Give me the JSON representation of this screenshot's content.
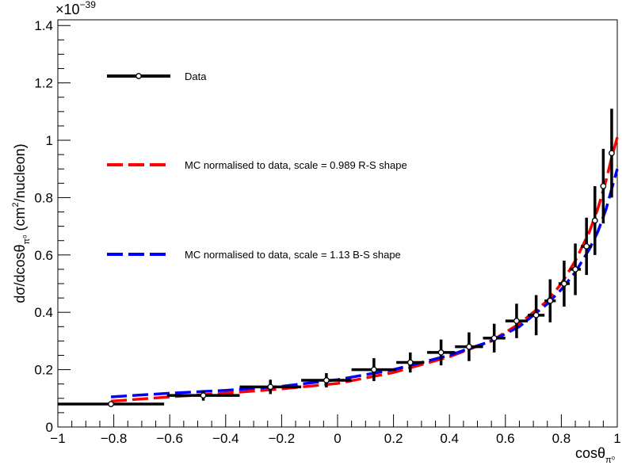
{
  "chart_data": {
    "type": "scatter",
    "title": "",
    "xlabel": "cosθ",
    "xlabel_sub": "π⁰",
    "ylabel_prefix": "dσ/dcosθ",
    "ylabel_sub": "π⁰",
    "ylabel_suffix": " (cm",
    "ylabel_sup": "2",
    "ylabel_end": "/nucleon)",
    "y_multiplier_base": "×10",
    "y_multiplier_exp": "−39",
    "xlim": [
      -1,
      1
    ],
    "ylim": [
      0,
      1.42
    ],
    "x_ticks": [
      "-1",
      "-0.8",
      "-0.6",
      "-0.4",
      "-0.2",
      "0",
      "0.2",
      "0.4",
      "0.6",
      "0.8",
      "1"
    ],
    "y_ticks": [
      "0",
      "0.2",
      "0.4",
      "0.6",
      "0.8",
      "1",
      "1.2",
      "1.4"
    ],
    "grid": false,
    "legend_position": "upper-left inside",
    "series": [
      {
        "name": "Data",
        "kind": "points",
        "color": "#000000",
        "x": [
          -0.81,
          -0.48,
          -0.24,
          -0.04,
          0.13,
          0.26,
          0.37,
          0.47,
          0.56,
          0.64,
          0.71,
          0.76,
          0.81,
          0.85,
          0.89,
          0.92,
          0.95,
          0.98
        ],
        "xerr_low": [
          0.19,
          0.13,
          0.11,
          0.09,
          0.08,
          0.05,
          0.05,
          0.05,
          0.04,
          0.04,
          0.03,
          0.02,
          0.02,
          0.02,
          0.02,
          0.01,
          0.01,
          0.01
        ],
        "xerr_high": [
          0.19,
          0.13,
          0.11,
          0.09,
          0.08,
          0.05,
          0.05,
          0.05,
          0.04,
          0.04,
          0.03,
          0.02,
          0.02,
          0.02,
          0.02,
          0.01,
          0.01,
          0.01
        ],
        "y": [
          0.08,
          0.11,
          0.14,
          0.163,
          0.2,
          0.225,
          0.26,
          0.28,
          0.31,
          0.37,
          0.39,
          0.44,
          0.5,
          0.55,
          0.63,
          0.72,
          0.84,
          0.955
        ],
        "yerr": [
          0.01,
          0.018,
          0.025,
          0.025,
          0.04,
          0.035,
          0.045,
          0.05,
          0.05,
          0.06,
          0.07,
          0.075,
          0.08,
          0.09,
          0.1,
          0.12,
          0.13,
          0.155
        ]
      },
      {
        "name": "MC normalised to data, scale = 0.989 R-S shape",
        "kind": "dashed-line",
        "color": "#ff0000",
        "x": [
          -0.81,
          -0.6,
          -0.4,
          -0.2,
          0.0,
          0.2,
          0.4,
          0.55,
          0.65,
          0.75,
          0.8,
          0.85,
          0.9,
          0.93,
          0.96,
          0.98,
          1.0
        ],
        "y": [
          0.09,
          0.105,
          0.118,
          0.133,
          0.152,
          0.19,
          0.245,
          0.3,
          0.36,
          0.44,
          0.5,
          0.58,
          0.68,
          0.76,
          0.86,
          0.94,
          1.01
        ]
      },
      {
        "name": "MC normalised to data, scale = 1.13 B-S shape",
        "kind": "dashed-line",
        "color": "#0000ff",
        "x": [
          -0.81,
          -0.6,
          -0.4,
          -0.2,
          0.0,
          0.2,
          0.4,
          0.55,
          0.65,
          0.75,
          0.8,
          0.85,
          0.9,
          0.93,
          0.96,
          0.98,
          1.0
        ],
        "y": [
          0.105,
          0.118,
          0.128,
          0.142,
          0.165,
          0.2,
          0.25,
          0.3,
          0.35,
          0.43,
          0.48,
          0.54,
          0.62,
          0.68,
          0.76,
          0.83,
          0.9
        ]
      }
    ]
  }
}
